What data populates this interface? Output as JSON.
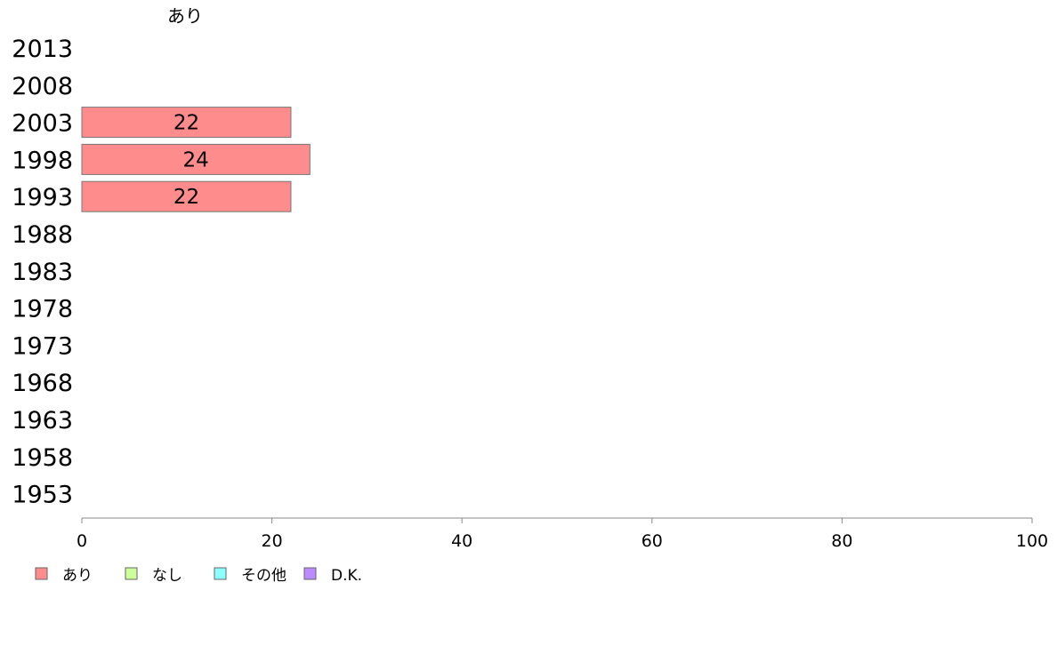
{
  "chart_data": {
    "type": "bar",
    "orientation": "horizontal",
    "stacked": true,
    "categories": [
      "2013",
      "2008",
      "2003",
      "1998",
      "1993",
      "1988",
      "1983",
      "1978",
      "1973",
      "1968",
      "1963",
      "1958",
      "1953"
    ],
    "series": [
      {
        "name": "あり",
        "color": "#ff8c8c",
        "values": [
          null,
          null,
          22,
          24,
          22,
          null,
          null,
          null,
          null,
          null,
          null,
          null,
          null
        ]
      },
      {
        "name": "なし",
        "color": "#ccff99",
        "values": [
          null,
          null,
          null,
          null,
          null,
          null,
          null,
          null,
          null,
          null,
          null,
          null,
          null
        ]
      },
      {
        "name": "その他",
        "color": "#8cffff",
        "values": [
          null,
          null,
          null,
          null,
          null,
          null,
          null,
          null,
          null,
          null,
          null,
          null,
          null
        ]
      },
      {
        "name": "D.K.",
        "color": "#bb8cff",
        "values": [
          null,
          null,
          null,
          null,
          null,
          null,
          null,
          null,
          null,
          null,
          null,
          null,
          null
        ]
      }
    ],
    "series_header": "あり",
    "xlim": [
      0,
      100
    ],
    "xticks": [
      0,
      20,
      40,
      60,
      80,
      100
    ],
    "xlabel": "",
    "ylabel": "",
    "title": "",
    "grid": false,
    "legend_placement": "bottom-left"
  }
}
